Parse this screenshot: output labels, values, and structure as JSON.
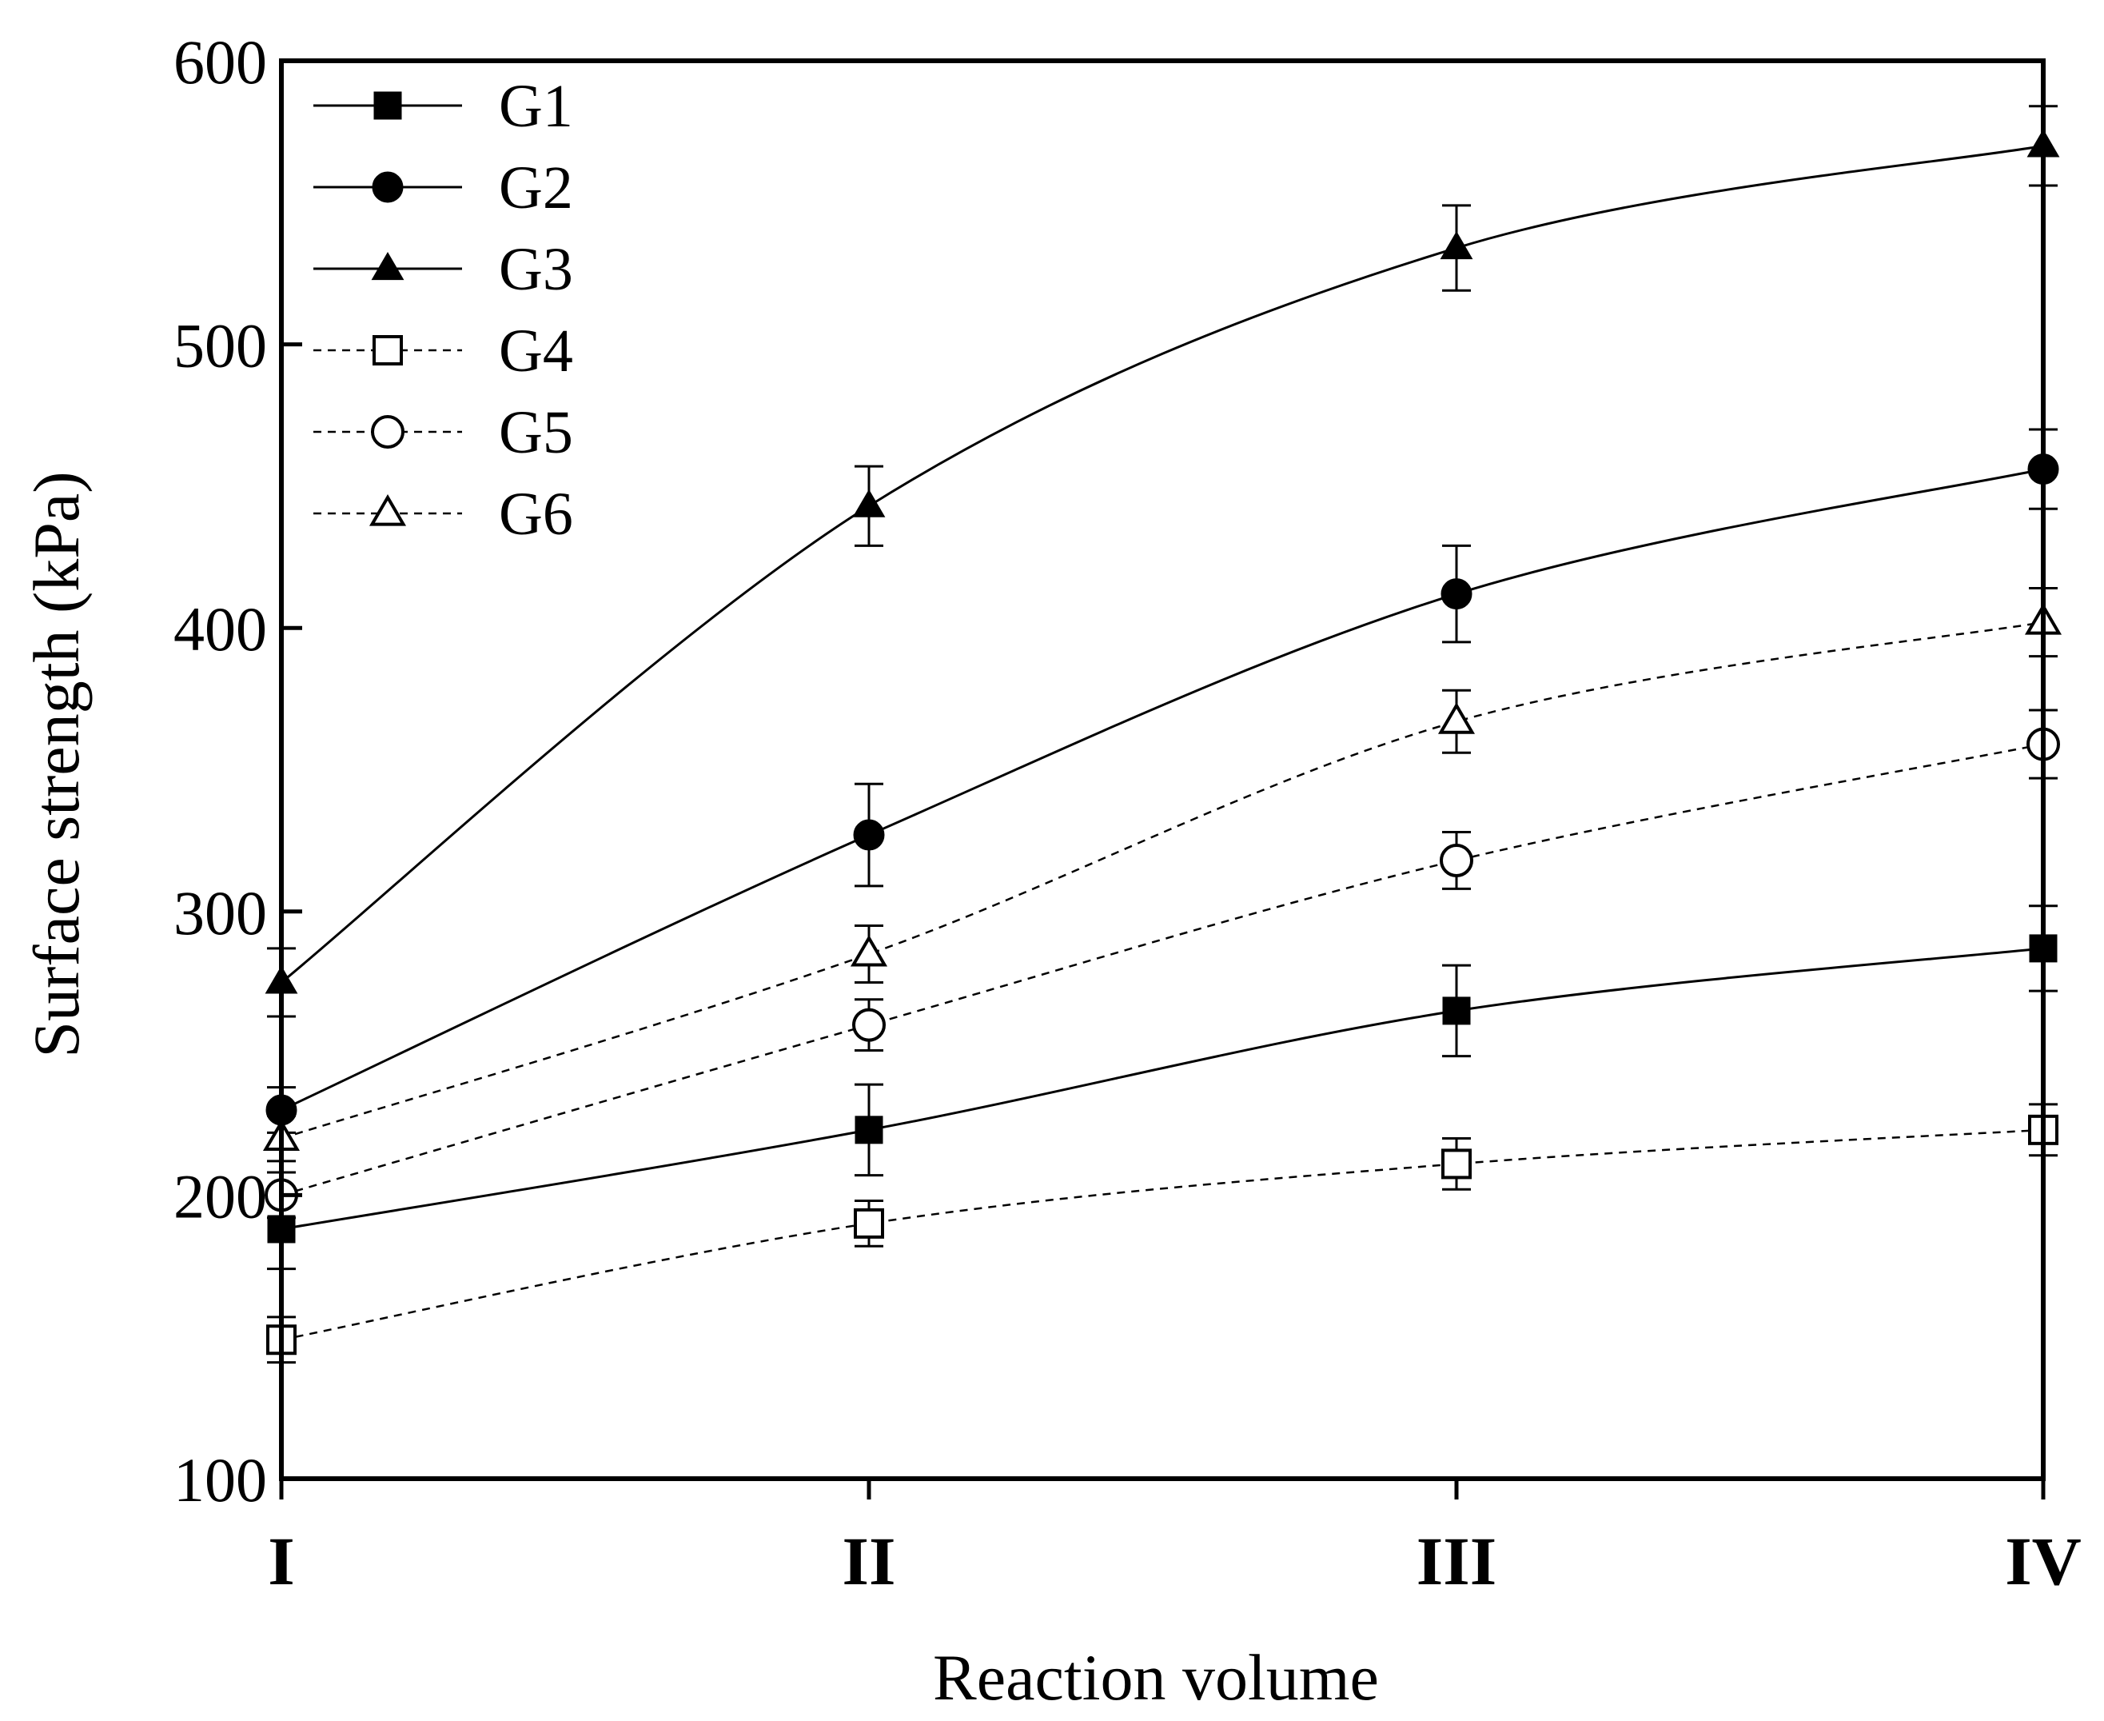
{
  "chart_data": {
    "type": "line",
    "title": "",
    "xlabel": "Reaction volume",
    "ylabel": "Surface strength (kPa)",
    "ylim": [
      100,
      600
    ],
    "yticks": [
      100,
      200,
      300,
      400,
      500,
      600
    ],
    "yticklabels": [
      "100",
      "200",
      "300",
      "400",
      "500",
      "600"
    ],
    "categories": [
      "I",
      "II",
      "III",
      "IV"
    ],
    "grid": false,
    "legend_position": "top-left",
    "series": [
      {
        "name": "G1",
        "values": [
          188,
          223,
          265,
          287
        ],
        "errors": [
          14,
          16,
          16,
          15
        ],
        "marker": "square",
        "filled": true,
        "line": "solid"
      },
      {
        "name": "G2",
        "values": [
          230,
          327,
          412,
          456
        ],
        "errors": [
          8,
          18,
          17,
          14
        ],
        "marker": "circle",
        "filled": true,
        "line": "solid"
      },
      {
        "name": "G3",
        "values": [
          275,
          443,
          534,
          570
        ],
        "errors": [
          12,
          14,
          15,
          14
        ],
        "marker": "triangle",
        "filled": true,
        "line": "solid"
      },
      {
        "name": "G4",
        "values": [
          149,
          190,
          211,
          223
        ],
        "errors": [
          8,
          8,
          9,
          9
        ],
        "marker": "square",
        "filled": false,
        "line": "dashed"
      },
      {
        "name": "G5",
        "values": [
          200,
          260,
          318,
          359
        ],
        "errors": [
          8,
          9,
          10,
          12
        ],
        "marker": "circle",
        "filled": false,
        "line": "dashed"
      },
      {
        "name": "G6",
        "values": [
          220,
          285,
          367,
          402
        ],
        "errors": [
          8,
          10,
          11,
          12
        ],
        "marker": "triangle",
        "filled": false,
        "line": "dashed"
      }
    ]
  }
}
